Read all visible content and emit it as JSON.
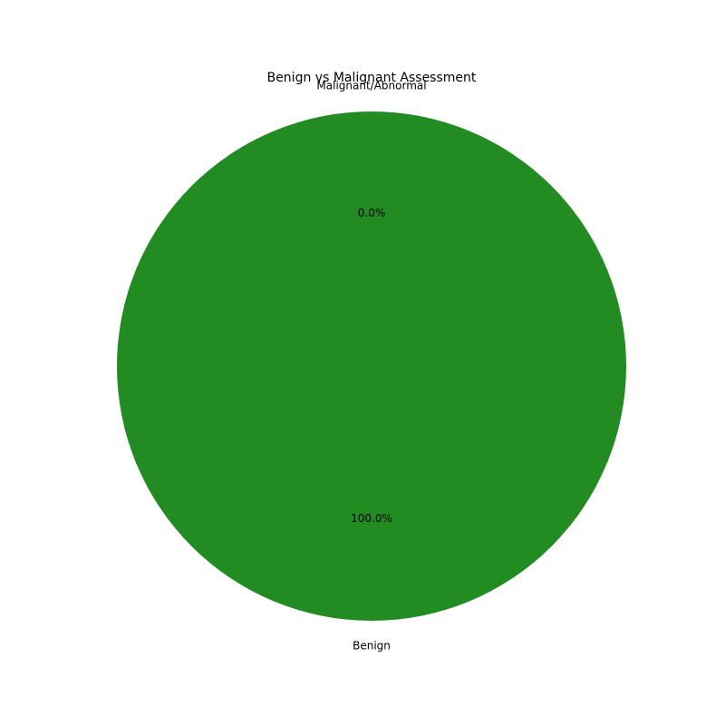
{
  "chart_data": {
    "type": "pie",
    "title": "Benign vs Malignant Assessment",
    "start_angle_deg": 90,
    "direction": "counterclockwise",
    "slices": [
      {
        "label": "Malignant/Abnormal",
        "value": 0.0,
        "percent_label": "0.0%",
        "color": "#ff6347"
      },
      {
        "label": "Benign",
        "value": 100.0,
        "percent_label": "100.0%",
        "color": "#228b22"
      }
    ]
  }
}
